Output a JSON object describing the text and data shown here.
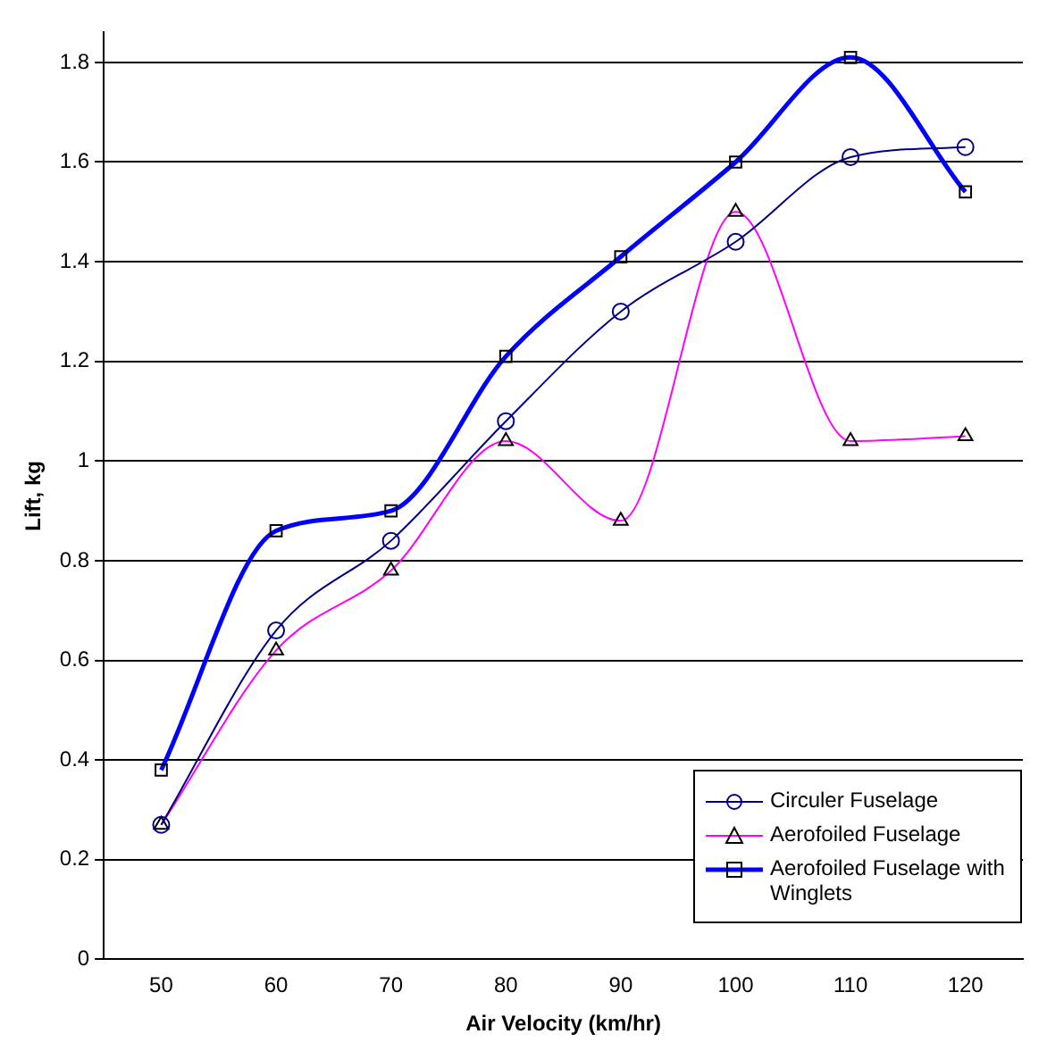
{
  "chart_data": {
    "type": "line",
    "xlabel": "Air Velocity (km/hr)",
    "ylabel": "Lift, kg",
    "categories": [
      "50",
      "60",
      "70",
      "80",
      "90",
      "100",
      "110",
      "120"
    ],
    "series": [
      {
        "name": "Circuler Fuselage",
        "color": "#000080",
        "marker": "circle",
        "values": [
          0.27,
          0.66,
          0.84,
          1.08,
          1.3,
          1.44,
          1.61,
          1.63
        ]
      },
      {
        "name": "Aerofoiled Fuselage",
        "color": "#ff00ff",
        "marker": "triangle",
        "values": [
          0.27,
          0.62,
          0.78,
          1.04,
          0.88,
          1.5,
          1.04,
          1.05
        ]
      },
      {
        "name": "Aerofoiled Fuselage with Winglets",
        "color": "#0000ff",
        "marker": "square",
        "values": [
          0.38,
          0.86,
          0.9,
          1.21,
          1.41,
          1.6,
          1.81,
          1.54
        ]
      }
    ],
    "ylim": [
      0,
      1.86
    ],
    "yticks": [
      0,
      0.2,
      0.4,
      0.6,
      0.8,
      1,
      1.2,
      1.4,
      1.6,
      1.8
    ],
    "grid": "y",
    "legend": "bottom right"
  }
}
